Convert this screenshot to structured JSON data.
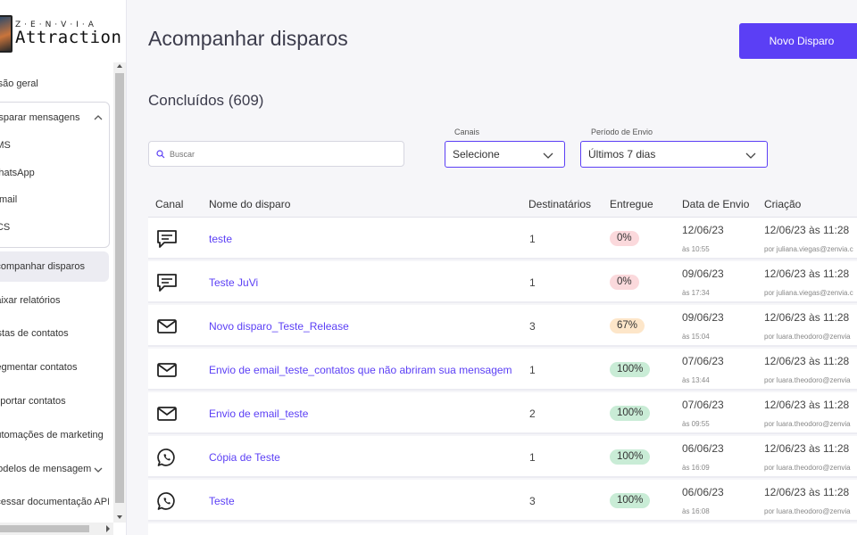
{
  "sidebar": {
    "brand": "Z·E·N·V·I·A",
    "product": "Attraction",
    "items": [
      {
        "label": "Visão geral"
      },
      {
        "label": "Disparar mensagens"
      },
      {
        "label": "SMS"
      },
      {
        "label": "WhatsApp"
      },
      {
        "label": "E-mail"
      },
      {
        "label": "RCS"
      },
      {
        "label": "Acompanhar disparos"
      },
      {
        "label": "Baixar relatórios"
      },
      {
        "label": "Listas de contatos"
      },
      {
        "label": "Segmentar contatos"
      },
      {
        "label": "Importar contatos"
      },
      {
        "label": "Automações de marketing"
      },
      {
        "label": "Modelos de mensagem"
      },
      {
        "label": "Acessar documentação API"
      }
    ]
  },
  "header": {
    "title": "Acompanhar disparos",
    "new_button": "Novo Disparo"
  },
  "section": {
    "title": "Concluídos (609)"
  },
  "filters": {
    "search_placeholder": "Buscar",
    "channels_label": "Canais",
    "channels_value": "Selecione",
    "period_label": "Período de Envio",
    "period_value": "Últimos 7 dias"
  },
  "table": {
    "headers": {
      "canal": "Canal",
      "nome": "Nome do disparo",
      "destinatarios": "Destinatários",
      "entregue": "Entregue",
      "data_envio": "Data de Envio",
      "criacao": "Criação"
    },
    "rows": [
      {
        "channel": "sms",
        "name": "teste",
        "recipients": "1",
        "delivered": "0%",
        "status": "red",
        "send_date": "12/06/23",
        "send_time": "às 10:55",
        "created": "12/06/23 às 11:28",
        "created_by": "por juliana.viegas@zenvia.c"
      },
      {
        "channel": "sms",
        "name": "Teste JuVi",
        "recipients": "1",
        "delivered": "0%",
        "status": "red",
        "send_date": "09/06/23",
        "send_time": "às 17:34",
        "created": "12/06/23 às 11:28",
        "created_by": "por juliana.viegas@zenvia.c"
      },
      {
        "channel": "email",
        "name": "Novo disparo_Teste_Release",
        "recipients": "3",
        "delivered": "67%",
        "status": "orange",
        "send_date": "09/06/23",
        "send_time": "às 15:04",
        "created": "12/06/23 às 11:28",
        "created_by": "por luara.theodoro@zenvia"
      },
      {
        "channel": "email",
        "name": "Envio de email_teste_contatos que não abriram sua mensagem",
        "recipients": "1",
        "delivered": "100%",
        "status": "green",
        "send_date": "07/06/23",
        "send_time": "às 13:44",
        "created": "12/06/23 às 11:28",
        "created_by": "por luara.theodoro@zenvia"
      },
      {
        "channel": "email",
        "name": "Envio de email_teste",
        "recipients": "2",
        "delivered": "100%",
        "status": "green",
        "send_date": "07/06/23",
        "send_time": "às 09:55",
        "created": "12/06/23 às 11:28",
        "created_by": "por luara.theodoro@zenvia"
      },
      {
        "channel": "whatsapp",
        "name": "Cópia de Teste",
        "recipients": "1",
        "delivered": "100%",
        "status": "green",
        "send_date": "06/06/23",
        "send_time": "às 16:09",
        "created": "12/06/23 às 11:28",
        "created_by": "por luara.theodoro@zenvia"
      },
      {
        "channel": "whatsapp",
        "name": "Teste",
        "recipients": "3",
        "delivered": "100%",
        "status": "green",
        "send_date": "06/06/23",
        "send_time": "às 16:08",
        "created": "12/06/23 às 11:28",
        "created_by": "por luara.theodoro@zenvia"
      }
    ]
  },
  "colors": {
    "accent": "#5b3ff5",
    "badge_red": "#fbd9dc",
    "badge_orange": "#fde6c9",
    "badge_green": "#c9ecd6"
  }
}
